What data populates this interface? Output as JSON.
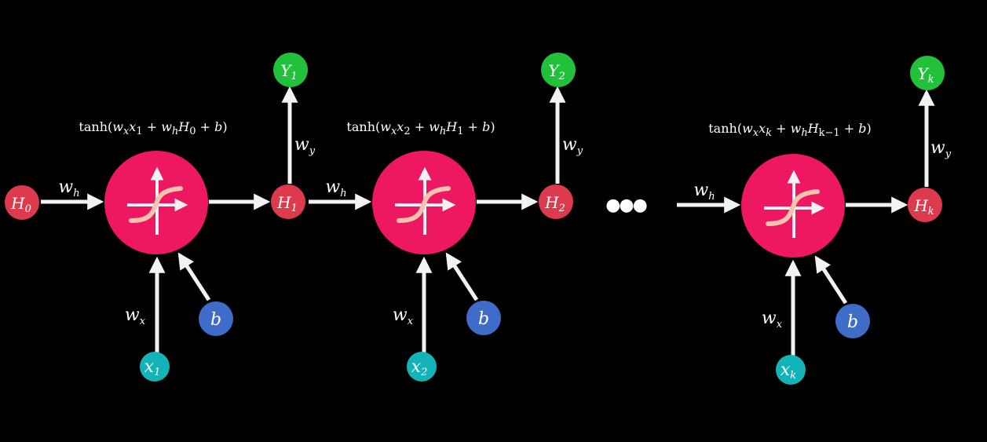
{
  "colors": {
    "background": "#000000",
    "activation": "#ee1862",
    "hidden_node": "#de3a4e",
    "output_node": "#22c13b",
    "input_node": "#14b3b7",
    "bias_node": "#3f6cc8",
    "arrow": "#f2f2f2",
    "sigmoid_curve": "#f6c4ae"
  },
  "ellipsis": "●●●",
  "cells": [
    {
      "formula": {
        "prefix": "tanh(",
        "wx": "w",
        "wx_sub": "x",
        "x": "x",
        "x_sub": "1",
        "plus1": " + ",
        "wh": "w",
        "wh_sub": "h",
        "h": "H",
        "h_sub": "0",
        "plus2": " + ",
        "b": "b",
        "suffix": ")"
      },
      "prev_hidden": {
        "main": "H",
        "sub": "0"
      },
      "hidden": {
        "main": "H",
        "sub": "1"
      },
      "output": {
        "main": "Y",
        "sub": "1"
      },
      "input": {
        "main": "x",
        "sub": "1"
      },
      "bias": "b",
      "w_h": {
        "main": "w",
        "sub": "h"
      },
      "w_x": {
        "main": "w",
        "sub": "x"
      },
      "w_y": {
        "main": "w",
        "sub": "y"
      }
    },
    {
      "formula": {
        "prefix": "tanh(",
        "wx": "w",
        "wx_sub": "x",
        "x": "x",
        "x_sub": "2",
        "plus1": " + ",
        "wh": "w",
        "wh_sub": "h",
        "h": "H",
        "h_sub": "1",
        "plus2": " + ",
        "b": "b",
        "suffix": ")"
      },
      "hidden": {
        "main": "H",
        "sub": "2"
      },
      "output": {
        "main": "Y",
        "sub": "2"
      },
      "input": {
        "main": "x",
        "sub": "2"
      },
      "bias": "b",
      "w_h": {
        "main": "w",
        "sub": "h"
      },
      "w_x": {
        "main": "w",
        "sub": "x"
      },
      "w_y": {
        "main": "w",
        "sub": "y"
      }
    },
    {
      "formula": {
        "prefix": "tanh(",
        "wx": "w",
        "wx_sub": "x",
        "x": "x",
        "x_sub": "k",
        "plus1": " + ",
        "wh": "w",
        "wh_sub": "h",
        "h": "H",
        "h_sub": "k−1",
        "plus2": " + ",
        "b": "b",
        "suffix": ")"
      },
      "hidden": {
        "main": "H",
        "sub": "k"
      },
      "output": {
        "main": "Y",
        "sub": "k"
      },
      "input": {
        "main": "x",
        "sub": "k"
      },
      "bias": "b",
      "w_h": {
        "main": "w",
        "sub": "h"
      },
      "w_x": {
        "main": "w",
        "sub": "x"
      },
      "w_y": {
        "main": "w",
        "sub": "y"
      }
    }
  ]
}
